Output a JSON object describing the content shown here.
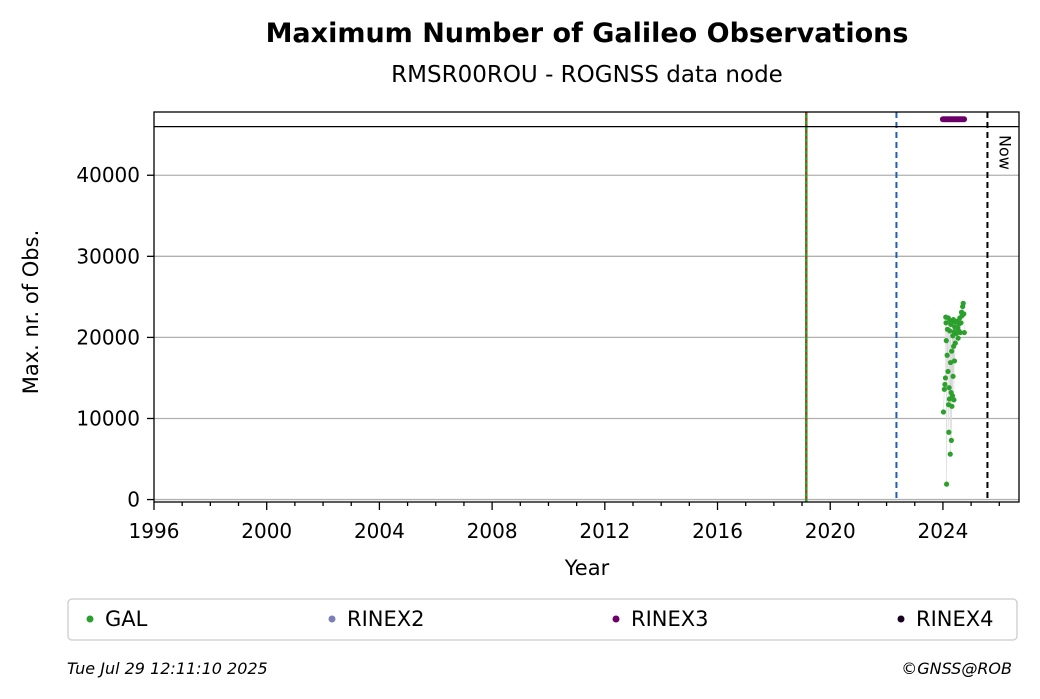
{
  "chart_data": {
    "type": "scatter",
    "title": "Maximum Number of Galileo Observations",
    "subtitle": "RMSR00ROU - ROGNSS data node",
    "xlabel": "Year",
    "ylabel": "Max. nr. of Obs.",
    "xlim": [
      1996.0,
      2026.7
    ],
    "ylim": [
      -300,
      47800
    ],
    "x_ticks": [
      1996,
      2000,
      2004,
      2008,
      2012,
      2016,
      2020,
      2024
    ],
    "x_tick_labels": [
      "1996",
      "2000",
      "2004",
      "2008",
      "2012",
      "2016",
      "2020",
      "2024"
    ],
    "y_ticks": [
      0,
      10000,
      20000,
      30000,
      40000
    ],
    "y_tick_labels": [
      "0",
      "10000",
      "20000",
      "30000",
      "40000"
    ],
    "grid": "horizontal",
    "top_band_level": 46000,
    "vlines": [
      {
        "x": 2019.15,
        "style": "solid-green-with-red-dash",
        "label": ""
      },
      {
        "x": 2022.35,
        "style": "dashed-blue",
        "label": ""
      },
      {
        "x": 2025.58,
        "style": "dashed-black",
        "label": "Now"
      }
    ],
    "series": [
      {
        "name": "GAL",
        "color": "#2ca02c",
        "points": [
          [
            2024.02,
            10800
          ],
          [
            2024.05,
            13600
          ],
          [
            2024.07,
            14200
          ],
          [
            2024.09,
            15000
          ],
          [
            2024.1,
            22500
          ],
          [
            2024.11,
            21800
          ],
          [
            2024.12,
            19600
          ],
          [
            2024.13,
            1900
          ],
          [
            2024.15,
            17800
          ],
          [
            2024.16,
            21000
          ],
          [
            2024.18,
            15800
          ],
          [
            2024.19,
            22400
          ],
          [
            2024.2,
            11700
          ],
          [
            2024.21,
            8300
          ],
          [
            2024.22,
            13800
          ],
          [
            2024.23,
            12400
          ],
          [
            2024.24,
            20800
          ],
          [
            2024.25,
            22100
          ],
          [
            2024.26,
            5600
          ],
          [
            2024.27,
            16900
          ],
          [
            2024.28,
            21600
          ],
          [
            2024.29,
            13200
          ],
          [
            2024.3,
            7300
          ],
          [
            2024.31,
            18300
          ],
          [
            2024.32,
            11500
          ],
          [
            2024.33,
            21900
          ],
          [
            2024.34,
            12800
          ],
          [
            2024.35,
            20200
          ],
          [
            2024.36,
            15200
          ],
          [
            2024.37,
            22200
          ],
          [
            2024.38,
            18900
          ],
          [
            2024.39,
            12300
          ],
          [
            2024.4,
            20700
          ],
          [
            2024.41,
            17100
          ],
          [
            2024.42,
            21300
          ],
          [
            2024.44,
            19300
          ],
          [
            2024.46,
            21900
          ],
          [
            2024.48,
            20500
          ],
          [
            2024.5,
            22000
          ],
          [
            2024.52,
            21200
          ],
          [
            2024.54,
            19900
          ],
          [
            2024.56,
            20800
          ],
          [
            2024.58,
            21700
          ],
          [
            2024.6,
            22400
          ],
          [
            2024.62,
            20600
          ],
          [
            2024.64,
            21800
          ],
          [
            2024.66,
            23100
          ],
          [
            2024.68,
            22700
          ],
          [
            2024.7,
            23800
          ],
          [
            2024.72,
            24200
          ],
          [
            2024.74,
            22900
          ],
          [
            2024.76,
            20600
          ]
        ]
      },
      {
        "name": "RINEX2",
        "color": "#7b7fb5",
        "points": []
      },
      {
        "name": "RINEX3",
        "color": "#6a0068",
        "points": [
          [
            2024.0,
            46900
          ],
          [
            2024.05,
            46900
          ],
          [
            2024.1,
            46900
          ],
          [
            2024.15,
            46900
          ],
          [
            2024.2,
            46900
          ],
          [
            2024.25,
            46900
          ],
          [
            2024.3,
            46900
          ],
          [
            2024.35,
            46900
          ],
          [
            2024.4,
            46900
          ],
          [
            2024.45,
            46900
          ],
          [
            2024.5,
            46900
          ],
          [
            2024.55,
            46900
          ],
          [
            2024.6,
            46900
          ],
          [
            2024.65,
            46900
          ],
          [
            2024.7,
            46900
          ],
          [
            2024.75,
            46900
          ]
        ]
      },
      {
        "name": "RINEX4",
        "color": "#1a0320",
        "points": []
      }
    ],
    "legend_placement": "bottom"
  },
  "footer": {
    "timestamp": "Tue Jul 29 12:11:10 2025",
    "credit": "©GNSS@ROB"
  }
}
